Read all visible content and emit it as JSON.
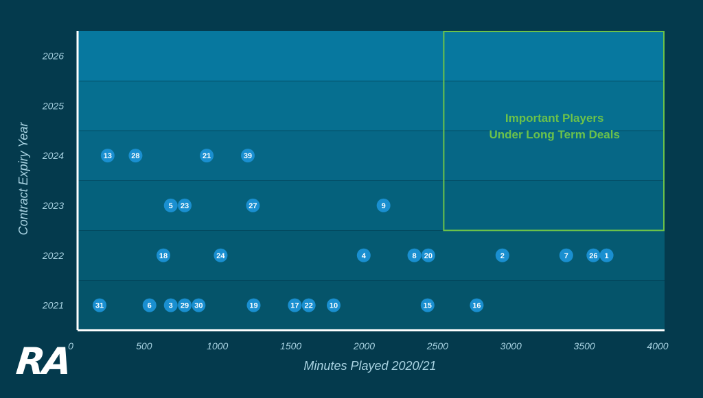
{
  "chart_data": {
    "type": "scatter",
    "xlabel": "Minutes Played 2020/21",
    "ylabel": "Contract Expiry Year",
    "xlim": [
      0,
      4000
    ],
    "x_ticks": [
      "0",
      "500",
      "1000",
      "1500",
      "2000",
      "2500",
      "3000",
      "3500",
      "4000"
    ],
    "y_categories": [
      "2021",
      "2022",
      "2023",
      "2024",
      "2025",
      "2026"
    ],
    "grid": false,
    "highlight_box": {
      "x_range": [
        2500,
        4000
      ],
      "y_range": [
        "2023",
        "2026"
      ],
      "label_lines": [
        "Important Players",
        "Under Long Term Deals"
      ]
    },
    "points": [
      {
        "label": "31",
        "x": 150,
        "y": "2021"
      },
      {
        "label": "6",
        "x": 490,
        "y": "2021"
      },
      {
        "label": "3",
        "x": 635,
        "y": "2021"
      },
      {
        "label": "29",
        "x": 730,
        "y": "2021"
      },
      {
        "label": "30",
        "x": 825,
        "y": "2021"
      },
      {
        "label": "19",
        "x": 1200,
        "y": "2021"
      },
      {
        "label": "17",
        "x": 1480,
        "y": "2021"
      },
      {
        "label": "22",
        "x": 1575,
        "y": "2021"
      },
      {
        "label": "10",
        "x": 1745,
        "y": "2021"
      },
      {
        "label": "15",
        "x": 2385,
        "y": "2021"
      },
      {
        "label": "16",
        "x": 2720,
        "y": "2021"
      },
      {
        "label": "18",
        "x": 585,
        "y": "2022"
      },
      {
        "label": "24",
        "x": 975,
        "y": "2022"
      },
      {
        "label": "4",
        "x": 1950,
        "y": "2022"
      },
      {
        "label": "8",
        "x": 2295,
        "y": "2022"
      },
      {
        "label": "20",
        "x": 2390,
        "y": "2022"
      },
      {
        "label": "2",
        "x": 2895,
        "y": "2022"
      },
      {
        "label": "7",
        "x": 3330,
        "y": "2022"
      },
      {
        "label": "26",
        "x": 3515,
        "y": "2022"
      },
      {
        "label": "1",
        "x": 3605,
        "y": "2022"
      },
      {
        "label": "5",
        "x": 635,
        "y": "2023"
      },
      {
        "label": "23",
        "x": 730,
        "y": "2023"
      },
      {
        "label": "27",
        "x": 1195,
        "y": "2023"
      },
      {
        "label": "9",
        "x": 2085,
        "y": "2023"
      },
      {
        "label": "13",
        "x": 205,
        "y": "2024"
      },
      {
        "label": "28",
        "x": 395,
        "y": "2024"
      },
      {
        "label": "21",
        "x": 880,
        "y": "2024"
      },
      {
        "label": "39",
        "x": 1160,
        "y": "2024"
      }
    ]
  },
  "colors": {
    "background": "#043a4d",
    "band_2021": "#05546a",
    "band_2022": "#055a72",
    "band_2023": "#05617c",
    "band_2024": "#066786",
    "band_2025": "#066f90",
    "band_2026": "#07789f",
    "point": "#1a8fd0",
    "highlight": "#6cc24a",
    "axis": "#ffffff",
    "tick_text": "#a9d3e2"
  },
  "logo": "RA"
}
